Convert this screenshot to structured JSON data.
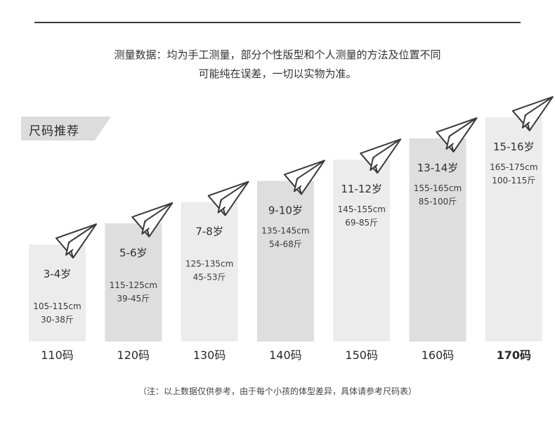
{
  "intro": {
    "line1": "测量数据：均为手工测量，部分个性版型和个人测量的方法及位置不同",
    "line2": "可能纯在误差，一切以实物为准。"
  },
  "tag_label": "尺码推荐",
  "footnote": "（注：以上数据仅供参考，由于每个小孩的体型差异，具体请参考尺码表）",
  "chart_data": {
    "type": "bar",
    "categories": [
      "110码",
      "120码",
      "130码",
      "140码",
      "150码",
      "160码",
      "170码"
    ],
    "values": [
      1,
      2,
      3,
      4,
      5,
      6,
      7
    ],
    "ages": [
      "3-4岁",
      "5-6岁",
      "7-8岁",
      "9-10岁",
      "11-12岁",
      "13-14岁",
      "15-16岁"
    ],
    "heights": [
      "105-115cm",
      "115-125cm",
      "125-135cm",
      "135-145cm",
      "145-155cm",
      "155-165cm",
      "165-175cm"
    ],
    "weights": [
      "30-38斤",
      "39-45斤",
      "45-53斤",
      "54-68斤",
      "69-85斤",
      "85-100斤",
      "100-115斤"
    ],
    "bar_colors": [
      "#ececec",
      "#dedede",
      "#ececec",
      "#dedede",
      "#ececec",
      "#dedede",
      "#ececec"
    ],
    "icon": "paper-plane-icon"
  }
}
